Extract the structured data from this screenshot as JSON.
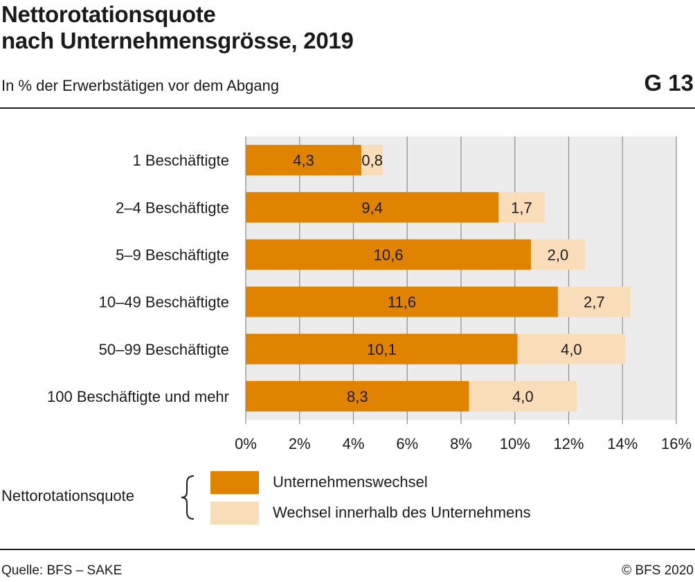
{
  "header": {
    "title_line1": "Nettorotationsquote",
    "title_line2": "nach Unternehmensgrösse, 2019",
    "subtitle": "In % der Erwerbstätigen vor dem Abgang",
    "code": "G 13"
  },
  "chart_data": {
    "type": "bar",
    "orientation": "horizontal",
    "stacked": true,
    "categories": [
      "1 Beschäftigte",
      "2–4 Beschäftigte",
      "5–9 Beschäftigte",
      "10–49 Beschäftigte",
      "50–99 Beschäftigte",
      "100 Beschäftigte und mehr"
    ],
    "series": [
      {
        "name": "Unternehmenswechsel",
        "values": [
          4.3,
          9.4,
          10.6,
          11.6,
          10.1,
          8.3
        ],
        "labels": [
          "4,3",
          "9,4",
          "10,6",
          "11,6",
          "10,1",
          "8,3"
        ],
        "color": "#e08300"
      },
      {
        "name": "Wechsel innerhalb des Unternehmens",
        "values": [
          0.8,
          1.7,
          2.0,
          2.7,
          4.0,
          4.0
        ],
        "labels": [
          "0,8",
          "1,7",
          "2,0",
          "2,7",
          "4,0",
          "4,0"
        ],
        "color": "#f9ddb8"
      }
    ],
    "x_ticks": [
      0,
      2,
      4,
      6,
      8,
      10,
      12,
      14,
      16
    ],
    "x_tick_labels": [
      "0%",
      "2%",
      "4%",
      "6%",
      "8%",
      "10%",
      "12%",
      "14%",
      "16%"
    ],
    "xlim": [
      0,
      16
    ],
    "grid": true,
    "plot_background": "#ececec",
    "grid_color": "#8c8c8c",
    "legend_placement": "bottom-left"
  },
  "legend": {
    "title": "Nettorotationsquote"
  },
  "footer": {
    "source": "Quelle: BFS – SAKE",
    "copyright": "© BFS 2020"
  }
}
